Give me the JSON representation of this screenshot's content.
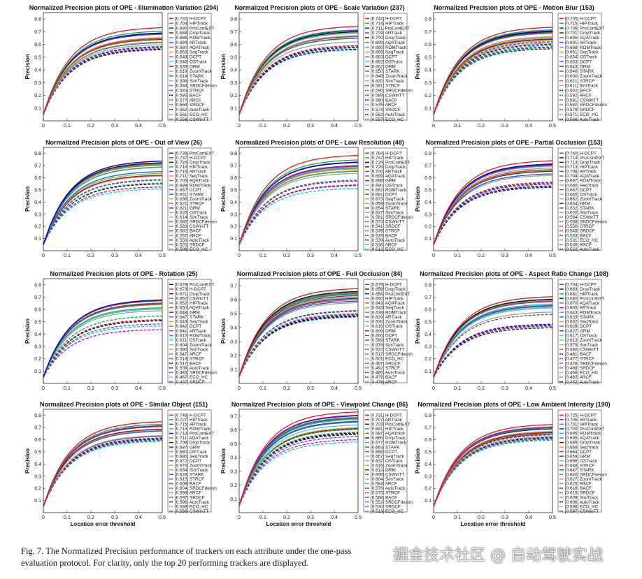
{
  "x_label": "Location error threshold",
  "y_label": "Precision",
  "caption": "Fig. 7.  The Normalized Precision performance of trackers on each attribute under the one-pass evaluation protocol. For clarity, only the top 20 performing trackers are displayed.",
  "watermark": "掘金技术社区 @ 自动驾驶实战",
  "tracker_styles": {
    "H-DCPT": {
      "color": "#e8141e",
      "dash": ""
    },
    "HIPTrack": {
      "color": "#00b050",
      "dash": ""
    },
    "ProContEXT": {
      "color": "#0000ee",
      "dash": ""
    },
    "DropTrack": {
      "color": "#111111",
      "dash": ""
    },
    "ROMTrack": {
      "color": "#00b8c8",
      "dash": ""
    },
    "ARTrack": {
      "color": "#c000c0",
      "dash": ""
    },
    "AQATrack": {
      "color": "#8b6914",
      "dash": ""
    },
    "SeqTrack": {
      "color": "#ff8c00",
      "dash": ""
    },
    "DCPT": {
      "color": "#8040a0",
      "dash": ""
    },
    "OSTrack": {
      "color": "#44c8f0",
      "dash": ""
    },
    "GRM": {
      "color": "#b00000",
      "dash": ""
    },
    "ZoomTrack": {
      "color": "#80c040",
      "dash": ""
    },
    "STARK": {
      "color": "#1060c0",
      "dash": ""
    },
    "SimTrack": {
      "color": "#a0a0a0",
      "dash": ""
    },
    "SRDCFdecon": {
      "color": "#6040c0",
      "dash": "4,2"
    },
    "STRCF": {
      "color": "#e8141e",
      "dash": "4,2"
    },
    "BACF": {
      "color": "#0000ee",
      "dash": "4,2"
    },
    "ARCF": {
      "color": "#00b050",
      "dash": "4,2"
    },
    "SRDCF": {
      "color": "#c000c0",
      "dash": "4,2"
    },
    "AutoTrack": {
      "color": "#111111",
      "dash": "4,2"
    },
    "ECO_HC": {
      "color": "#00d0d0",
      "dash": "4,2"
    },
    "CSWinTT": {
      "color": "#505050",
      "dash": "4,2"
    }
  },
  "chart_data": [
    {
      "type": "line",
      "title": "Normalized Precision plots of OPE - Illumination Variation (204)",
      "xlabel": "",
      "ylabel": "Precision",
      "xlim": [
        0,
        0.5
      ],
      "ylim": [
        0,
        0.8
      ],
      "yticks": [
        0.1,
        0.2,
        0.3,
        0.4,
        0.5,
        0.6,
        0.7,
        0.8
      ],
      "legend": [
        "[0.732] H-DCPT",
        "[0.704] HIPTrack",
        "[0.690] ProContEXT",
        "[0.688] DropTrack",
        "[0.686] ROMTrack",
        "[0.684] ARTrack",
        "[0.680] AQATrack",
        "[0.653] SeqTrack",
        "[0.648] DCPT",
        "[0.646] OSTrack",
        "[0.639] GRM",
        "[0.619] ZoomTrack",
        "[0.614] STARK",
        "[0.598] SimTrack",
        "[0.584] SRDCFdecon",
        "[0.583] STRCF",
        "[0.580] BACF",
        "[0.577] ARCF",
        "[0.568] SRDCF",
        "[0.562] AutoTrack",
        "[0.561] ECO_HC",
        "[0.558] CSWinTT"
      ]
    },
    {
      "type": "line",
      "title": "Normalized Precision plots of OPE - Scale Variation (237)",
      "xlabel": "",
      "ylabel": "Precision",
      "xlim": [
        0,
        0.5
      ],
      "ylim": [
        0,
        0.8
      ],
      "yticks": [
        0.1,
        0.2,
        0.3,
        0.4,
        0.5,
        0.6,
        0.7,
        0.8
      ],
      "legend": [
        "[0.742] H-DCPT",
        "[0.714] HIPTrack",
        "[0.711] ProContEXT",
        "[0.709] ARTrack",
        "[0.700] DropTrack",
        "[0.699] AQATrack",
        "[0.690] ROMTrack",
        "[0.669] SeqTrack",
        "[0.663] DCPT",
        "[0.662] OSTrack",
        "[0.662] GRM",
        "[0.650] STARK",
        "[0.648] ZoomTrack",
        "[0.620] SimTrack",
        "[0.591] STRCF",
        "[0.590] SRDCFdecon",
        "[0.589] CSWinTT",
        "[0.580] BACF",
        "[0.576] ARCF",
        "[0.574] SRDCF",
        "[0.563] AutoTrack",
        "[0.557] ECO_HC"
      ]
    },
    {
      "type": "line",
      "title": "Normalized Precision plots of OPE - Motion Blur (153)",
      "xlabel": "",
      "ylabel": "Precision",
      "xlim": [
        0,
        0.5
      ],
      "ylim": [
        0,
        0.8
      ],
      "yticks": [
        0.1,
        0.2,
        0.3,
        0.4,
        0.5,
        0.6,
        0.7,
        0.8
      ],
      "legend": [
        "[0.735] H-DCPT",
        "[0.715] HIPTrack",
        "[0.706] ProContEXT",
        "[0.701] DropTrack",
        "[0.695] AQATrack",
        "[0.691] ARTrack",
        "[0.688] ROMTrack",
        "[0.661] SeqTrack",
        "[0.654] OSTrack",
        "[0.653] DCPT",
        "[0.643] GRM",
        "[0.640] STARK",
        "[0.630] ZoomTrack",
        "[0.621] STRCF",
        "[0.611] SimTrack",
        "[0.602] BACF",
        "[0.592] ARCF",
        "[0.581] CSWinTT",
        "[0.580] SRDCFdecon",
        "[0.578] SRDCF",
        "[0.571] ECO_HC",
        "[0.566] AutoTrack"
      ]
    },
    {
      "type": "line",
      "title": "Normalized Precision plots of OPE - Out of View (26)",
      "xlabel": "",
      "ylabel": "Precision",
      "xlim": [
        0,
        0.5
      ],
      "ylim": [
        0,
        0.8
      ],
      "yticks": [
        0.1,
        0.2,
        0.3,
        0.4,
        0.5,
        0.6,
        0.7,
        0.8
      ],
      "legend": [
        "[0.738] ProContEXT",
        "[0.737] H-DCPT",
        "[0.724] DropTrack",
        "[0.718] HIPTrack",
        "[0.716] ARTrack",
        "[0.711] SeqTrack",
        "[0.705] AQATrack",
        "[0.689] ROMTrack",
        "[0.687] DCPT",
        "[0.651] STARK",
        "[0.636] ZoomTrack",
        "[0.621] STRCF",
        "[0.621] GRM",
        "[0.620] OSTrack",
        "[0.614] SimTrack",
        "[0.585] SRDCFdecon",
        "[0.583] CSWinTT",
        "[0.582] BACF",
        "[0.557] ARCF",
        "[0.550] AutoTrack",
        "[0.525] SRDCF",
        "[0.508] ECO_HC"
      ]
    },
    {
      "type": "line",
      "title": "Normalized Precision plots of OPE - Low Resolution (48)",
      "xlabel": "",
      "ylabel": "Precision",
      "xlim": [
        0,
        0.5
      ],
      "ylim": [
        0,
        0.8
      ],
      "yticks": [
        0.1,
        0.2,
        0.3,
        0.4,
        0.5,
        0.6,
        0.7,
        0.8
      ],
      "legend": [
        "[0.784] H-DCPT",
        "[0.747] HIPTrack",
        "[0.729] ProContEXT",
        "[0.726] DropTrack",
        "[0.700] ARTrack",
        "[0.699] AQATrack",
        "[0.696] GRM",
        "[0.690] OSTrack",
        "[0.682] ROMTrack",
        "[0.681] DCPT",
        "[0.673] SeqTrack",
        "[0.658] ZoomTrack",
        "[0.654] STARK",
        "[0.637] SimTrack",
        "[0.581] SRDCFdecon",
        "[0.573] CSWinTT",
        "[0.541] SRDCF",
        "[0.539] STRCF",
        "[0.539] BACF",
        "[0.539] AutoTrack",
        "[0.536] ARCF",
        "[0.512] ECO_HC"
      ]
    },
    {
      "type": "line",
      "title": "Normalized Precision plots of OPE - Partial Occlusion (153)",
      "xlabel": "",
      "ylabel": "Precision",
      "xlim": [
        0,
        0.5
      ],
      "ylim": [
        0,
        0.8
      ],
      "yticks": [
        0.1,
        0.2,
        0.3,
        0.4,
        0.5,
        0.6,
        0.7,
        0.8
      ],
      "legend": [
        "[0.740] H-DCPT",
        "[0.713] ProContEXT",
        "[0.713] DropTrack",
        "[0.713] HIPTrack",
        "[0.706] ARTrack",
        "[0.704] AQATrack",
        "[0.697] ROMTrack",
        "[0.680] SeqTrack",
        "[0.667] DCPT",
        "[0.665] OSTrack",
        "[0.662] ZoomTrack",
        "[0.654] GRM",
        "[0.632] STARK",
        "[0.620] SimTrack",
        "[0.564] CSWinTT",
        "[0.558] SRDCFdecon",
        "[0.550] STRCF",
        "[0.548] SRDCF",
        "[0.533] BACF",
        "[0.531] ECO_HC",
        "[0.530] ARCF",
        "[0.522] AutoTrack"
      ]
    },
    {
      "type": "line",
      "title": "Normalized Precision plots of OPE - Rotation (25)",
      "xlabel": "",
      "ylabel": "Precision",
      "xlim": [
        0,
        0.5
      ],
      "ylim": [
        0,
        0.8
      ],
      "yticks": [
        0.1,
        0.2,
        0.3,
        0.4,
        0.5,
        0.6,
        0.7,
        0.8
      ],
      "legend": [
        "[0.678] ProContEXT",
        "[0.673] H-DCPT",
        "[0.671] DropTrack",
        "[0.652] CSWinTT",
        "[0.652] HIPTrack",
        "[0.650] AQATrack",
        "[0.648] GRM",
        "[0.647] STARK",
        "[0.643] SeqTrack",
        "[0.642] DCPT",
        "[0.641] ARTrack",
        "[0.615] ROMTrack",
        "[0.611] OSTrack",
        "[0.604] ZoomTrack",
        "[0.590] SimTrack",
        "[0.547] ARCF",
        "[0.518] STRCF",
        "[0.517] BACF",
        "[0.509] AutoTrack",
        "[0.483] SRDCFdecon",
        "[0.467] ECO_HC",
        "[0.437] SRDCF"
      ]
    },
    {
      "type": "line",
      "title": "Normalized Precision plots of OPE - Full Occlusion (84)",
      "xlabel": "",
      "ylabel": "Precision",
      "xlim": [
        0,
        0.5
      ],
      "ylim": [
        0,
        0.7
      ],
      "yticks": [
        0.1,
        0.2,
        0.3,
        0.4,
        0.5,
        0.6,
        0.7
      ],
      "legend": [
        "[0.679] H-DCPT",
        "[0.658] DropTrack",
        "[0.658] ProContEXT",
        "[0.650] HIPTrack",
        "[0.643] AQATrack",
        "[0.643] SeqTrack",
        "[0.638] ROMTrack",
        "[0.629] ARTrack",
        "[0.620] ZoomTrack",
        "[0.616] OSTrack",
        "[0.609] GRM",
        "[0.600] DCPT",
        "[0.589] STARK",
        "[0.578] SimTrack",
        "[0.522] CSWinTT",
        "[0.517] SRDCFdecon",
        "[0.501] ECO_HC",
        "[0.497] SRDCF",
        "[0.492] STRCF",
        "[0.485] AutoTrack",
        "[0.479] BACF",
        "[0.476] ARCF"
      ]
    },
    {
      "type": "line",
      "title": "Normalized Precision plots of OPE - Aspect Ratio Change (108)",
      "xlabel": "",
      "ylabel": "Precision",
      "xlim": [
        0,
        0.5
      ],
      "ylim": [
        0,
        0.8
      ],
      "yticks": [
        0.1,
        0.2,
        0.3,
        0.4,
        0.5,
        0.6,
        0.7,
        0.8
      ],
      "legend": [
        "[0.704] H-DCPT",
        "[0.683] DropTrack",
        "[0.681] HIPTrack",
        "[0.680] ProContEXT",
        "[0.670] AQATrack",
        "[0.665] ARTrack",
        "[0.643] ROMTrack",
        "[0.633] STARK",
        "[0.632] SeqTrack",
        "[0.628] DCPT",
        "[0.627] GRM",
        "[0.617] OSTrack",
        "[0.613] ZoomTrack",
        "[0.579] SimTrack",
        "[0.560] CSWinTT",
        "[0.481] BACF",
        "[0.477] STRCF",
        "[0.476] SRDCFdecon",
        "[0.468] SRDCF",
        "[0.466] ECO_HC",
        "[0.463] ARCF",
        "[0.452] AutoTrack"
      ]
    },
    {
      "type": "line",
      "title": "Normalized Precision plots of OPE - Similar Object (151)",
      "xlabel": "Location error threshold",
      "ylabel": "Precision",
      "xlim": [
        0,
        0.5
      ],
      "ylim": [
        0,
        0.8
      ],
      "yticks": [
        0.1,
        0.2,
        0.3,
        0.4,
        0.5,
        0.6,
        0.7,
        0.8
      ],
      "legend": [
        "[0.748] H-DCPT",
        "[0.727] HIPTrack",
        "[0.715] ARTrack",
        "[0.715] ROMTrack",
        "[0.714] ProContEXT",
        "[0.711] AQATrack",
        "[0.709] DropTrack",
        "[0.687] GRM",
        "[0.680] OSTrack",
        "[0.680] SeqTrack",
        "[0.672] DCPT",
        "[0.670] ZoomTrack",
        "[0.634] SimTrack",
        "[0.628] STARK",
        "[0.615] STRCF",
        "[0.608] BACF",
        "[0.604] SRDCFdecon",
        "[0.598] ARCF",
        "[0.597] SRDCF",
        "[0.596] AutoTrack",
        "[0.588] ECO_HC",
        "[0.588] CSWinTT"
      ]
    },
    {
      "type": "line",
      "title": "Normalized Precision plots of OPE - Viewpoint Change (86)",
      "xlabel": "Location error threshold",
      "ylabel": "Precision",
      "xlim": [
        0,
        0.5
      ],
      "ylim": [
        0,
        0.7
      ],
      "yticks": [
        0.1,
        0.2,
        0.3,
        0.4,
        0.5,
        0.6,
        0.7
      ],
      "legend": [
        "[0.731] H-DCPT",
        "[0.707] ARTrack",
        "[0.703] ProContEXT",
        "[0.691] HIPTrack",
        "[0.687] AQATrack",
        "[0.685] DropTrack",
        "[0.677] ROMTrack",
        "[0.663] STARK",
        "[0.658] DCPT",
        "[0.657] SeqTrack",
        "[0.637] OSTrack",
        "[0.616] ZoomTrack",
        "[0.612] GRM",
        "[0.606] CSWinTT",
        "[0.604] SimTrack",
        "[0.584] ARCF",
        "[0.578] AutoTrack",
        "[0.575] STRCF",
        "[0.568] BACF",
        "[0.552] SRDCFdecon",
        "[0.530] SRDCF",
        "[0.513] ECO_HC"
      ]
    },
    {
      "type": "line",
      "title": "Normalized Precision plots of OPE - Low Ambient Intensity (190)",
      "xlabel": "Location error threshold",
      "ylabel": "Precision",
      "xlim": [
        0,
        0.5
      ],
      "ylim": [
        0,
        0.8
      ],
      "yticks": [
        0.1,
        0.2,
        0.3,
        0.4,
        0.5,
        0.6,
        0.7,
        0.8
      ],
      "legend": [
        "[0.725] H-DCPT",
        "[0.705] ARTrack",
        "[0.701] HIPTrack",
        "[0.700] ProContEXT",
        "[0.695] ROMTrack",
        "[0.695] AQATrack",
        "[0.689] DropTrack",
        "[0.668] SeqTrack",
        "[0.664] DCPT",
        "[0.659] GRM",
        "[0.656] OSTrack",
        "[0.648] STRCF",
        "[0.647] STARK",
        "[0.640] SRDCFdecon",
        "[0.627] ZoomTrack",
        "[0.625] ARCF",
        "[0.618] BACF",
        "[0.615] SRDCF",
        "[0.609] SimTrack",
        "[0.606] AutoTrack",
        "[0.598] ECO_HC",
        "[0.597] CSWinTT"
      ]
    }
  ]
}
